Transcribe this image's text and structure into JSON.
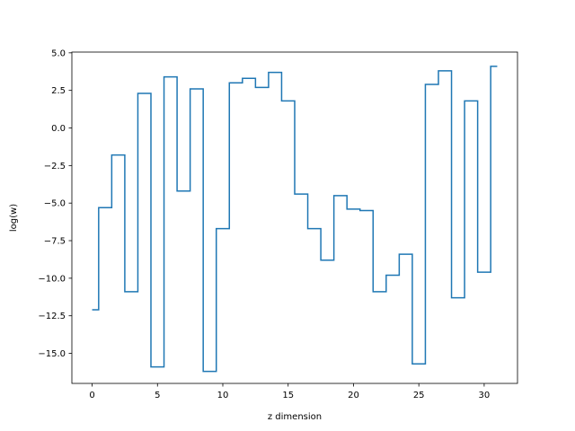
{
  "chart_data": {
    "type": "line",
    "drawstyle": "steps-mid",
    "title": "",
    "xlabel": "z dimension",
    "ylabel": "log(w)",
    "xlim": [
      -1.55,
      32.55
    ],
    "ylim": [
      -17.0,
      5.05
    ],
    "grid": false,
    "line_color": "#1f77b4",
    "xticks": [
      0,
      5,
      10,
      15,
      20,
      25,
      30
    ],
    "yticks": [
      -15.0,
      -12.5,
      -10.0,
      -7.5,
      -5.0,
      -2.5,
      0.0,
      2.5,
      5.0
    ],
    "series": [
      {
        "x": [
          0,
          1,
          2,
          3,
          4,
          5,
          6,
          7,
          8,
          9,
          10,
          11,
          12,
          13,
          14,
          15,
          16,
          17,
          18,
          19,
          20,
          21,
          22,
          23,
          24,
          25,
          26,
          27,
          28,
          29,
          30,
          31
        ],
        "y": [
          -12.1,
          -5.3,
          -1.8,
          -10.9,
          2.3,
          -15.9,
          3.4,
          -4.2,
          2.6,
          -16.2,
          -6.7,
          3.0,
          3.3,
          2.7,
          3.7,
          1.8,
          -4.4,
          -6.7,
          -8.8,
          -4.5,
          -5.4,
          -5.5,
          -10.9,
          -9.8,
          -8.4,
          -15.7,
          2.9,
          3.8,
          -11.3,
          1.8,
          -9.6,
          4.1
        ]
      }
    ]
  }
}
